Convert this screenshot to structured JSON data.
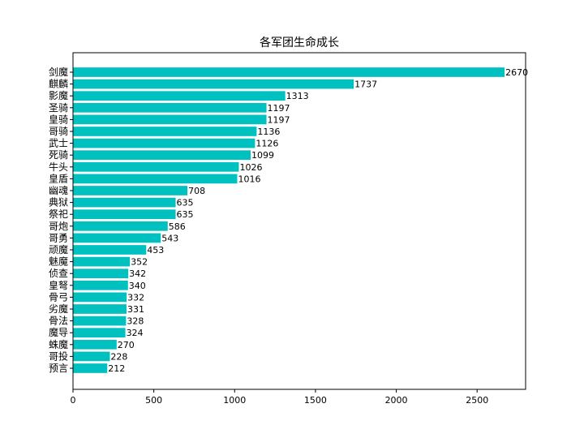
{
  "chart_data": {
    "type": "bar",
    "orientation": "horizontal",
    "title": "各军团生命成长",
    "xlabel": "",
    "ylabel": "",
    "categories": [
      "剑魔",
      "麒麟",
      "影魔",
      "圣骑",
      "皇骑",
      "哥骑",
      "武士",
      "死骑",
      "牛头",
      "皇盾",
      "幽魂",
      "典狱",
      "祭祀",
      "哥炮",
      "哥勇",
      "顽魔",
      "魅魔",
      "侦查",
      "皇弩",
      "骨弓",
      "劣魔",
      "骨法",
      "魔导",
      "蛛魔",
      "哥投",
      "预言"
    ],
    "values": [
      2670,
      1737,
      1313,
      1197,
      1197,
      1136,
      1126,
      1099,
      1026,
      1016,
      708,
      635,
      635,
      586,
      543,
      453,
      352,
      342,
      340,
      332,
      331,
      328,
      324,
      270,
      228,
      212
    ],
    "xlim": [
      0,
      2800
    ],
    "xticks": [
      0,
      500,
      1000,
      1500,
      2000,
      2500
    ],
    "bar_color": "#00c0c0",
    "grid": false,
    "data_labels": true
  }
}
